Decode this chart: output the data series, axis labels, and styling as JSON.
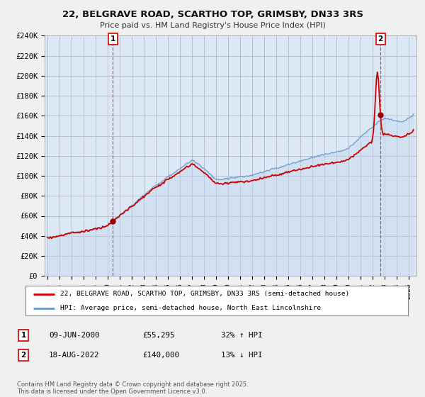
{
  "title_line1": "22, BELGRAVE ROAD, SCARTHO TOP, GRIMSBY, DN33 3RS",
  "title_line2": "Price paid vs. HM Land Registry's House Price Index (HPI)",
  "ylim": [
    0,
    240000
  ],
  "yticks": [
    0,
    20000,
    40000,
    60000,
    80000,
    100000,
    120000,
    140000,
    160000,
    180000,
    200000,
    220000,
    240000
  ],
  "ytick_labels": [
    "£0",
    "£20K",
    "£40K",
    "£60K",
    "£80K",
    "£100K",
    "£120K",
    "£140K",
    "£160K",
    "£180K",
    "£200K",
    "£220K",
    "£240K"
  ],
  "background_color": "#f0f0f0",
  "plot_bg_color": "#dce8f5",
  "grid_color": "#b0b8c8",
  "red_line_color": "#cc0000",
  "blue_line_color": "#6699cc",
  "blue_fill_color": "#c5d8ee",
  "vline_color": "#cc2222",
  "marker_color": "#990000",
  "legend_entry1": "22, BELGRAVE ROAD, SCARTHO TOP, GRIMSBY, DN33 3RS (semi-detached house)",
  "legend_entry2": "HPI: Average price, semi-detached house, North East Lincolnshire",
  "footer_text": "Contains HM Land Registry data © Crown copyright and database right 2025.\nThis data is licensed under the Open Government Licence v3.0.",
  "annotation1_date": "09-JUN-2000",
  "annotation1_price": "£55,295",
  "annotation1_hpi": "32% ↑ HPI",
  "annotation2_date": "18-AUG-2022",
  "annotation2_price": "£140,000",
  "annotation2_hpi": "13% ↓ HPI",
  "sale1_price": 55295,
  "sale2_price": 140000,
  "xstart_year": 1995,
  "xend_year": 2025
}
